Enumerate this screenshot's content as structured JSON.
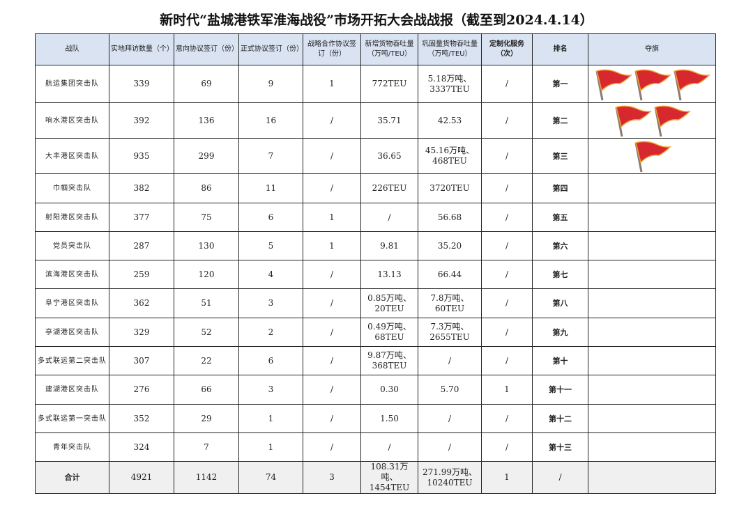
{
  "title": "新时代“盐城港铁军淮海战役”市场开拓大会战战报（截至到2024.4.14）",
  "headers": [
    "战队",
    "实地拜访数量（个）",
    "意向协议签订（份）",
    "正式协议签订（份）",
    "战略合作协议签订（份）",
    "新增货物吞吐量（万吨/TEU）",
    "巩固量货物吞吐量（万吨/TEU）",
    "定制化服务（次）",
    "排名",
    "夺旗"
  ],
  "rows": [
    {
      "team": "航运集团突击队",
      "visits": "339",
      "intent": "69",
      "formal": "9",
      "strategic": "1",
      "new_tp": "772TEU",
      "kept_tp": "5.18万吨、3337TEU",
      "custom": "/",
      "rank": "第一",
      "flags": 3
    },
    {
      "team": "响水港区突击队",
      "visits": "392",
      "intent": "136",
      "formal": "16",
      "strategic": "/",
      "new_tp": "35.71",
      "kept_tp": "42.53",
      "custom": "/",
      "rank": "第二",
      "flags": 2
    },
    {
      "team": "大丰港区突击队",
      "visits": "935",
      "intent": "299",
      "formal": "7",
      "strategic": "/",
      "new_tp": "36.65",
      "kept_tp": "45.16万吨、468TEU",
      "custom": "/",
      "rank": "第三",
      "flags": 1
    },
    {
      "team": "巾帼突击队",
      "visits": "382",
      "intent": "86",
      "formal": "11",
      "strategic": "/",
      "new_tp": "226TEU",
      "kept_tp": "3720TEU",
      "custom": "/",
      "rank": "第四",
      "flags": 0
    },
    {
      "team": "射阳港区突击队",
      "visits": "377",
      "intent": "75",
      "formal": "6",
      "strategic": "1",
      "new_tp": "/",
      "kept_tp": "56.68",
      "custom": "/",
      "rank": "第五",
      "flags": 0
    },
    {
      "team": "党员突击队",
      "visits": "287",
      "intent": "130",
      "formal": "5",
      "strategic": "1",
      "new_tp": "9.81",
      "kept_tp": "35.20",
      "custom": "/",
      "rank": "第六",
      "flags": 0
    },
    {
      "team": "滨海港区突击队",
      "visits": "259",
      "intent": "120",
      "formal": "4",
      "strategic": "/",
      "new_tp": "13.13",
      "kept_tp": "66.44",
      "custom": "/",
      "rank": "第七",
      "flags": 0
    },
    {
      "team": "阜宁港区突击队",
      "visits": "362",
      "intent": "51",
      "formal": "3",
      "strategic": "/",
      "new_tp": "0.85万吨、20TEU",
      "kept_tp": "7.8万吨、60TEU",
      "custom": "/",
      "rank": "第八",
      "flags": 0
    },
    {
      "team": "亭湖港区突击队",
      "visits": "329",
      "intent": "52",
      "formal": "2",
      "strategic": "/",
      "new_tp": "0.49万吨、68TEU",
      "kept_tp": "7.3万吨、2655TEU",
      "custom": "/",
      "rank": "第九",
      "flags": 0
    },
    {
      "team": "多式联运第二突击队",
      "visits": "307",
      "intent": "22",
      "formal": "6",
      "strategic": "/",
      "new_tp": "9.87万吨、368TEU",
      "kept_tp": "/",
      "custom": "/",
      "rank": "第十",
      "flags": 0
    },
    {
      "team": "建湖港区突击队",
      "visits": "276",
      "intent": "66",
      "formal": "3",
      "strategic": "/",
      "new_tp": "0.30",
      "kept_tp": "5.70",
      "custom": "1",
      "rank": "第十一",
      "flags": 0
    },
    {
      "team": "多式联运第一突击队",
      "visits": "352",
      "intent": "29",
      "formal": "1",
      "strategic": "/",
      "new_tp": "1.50",
      "kept_tp": "/",
      "custom": "/",
      "rank": "第十二",
      "flags": 0
    },
    {
      "team": "青年突击队",
      "visits": "324",
      "intent": "7",
      "formal": "1",
      "strategic": "/",
      "new_tp": "/",
      "kept_tp": "/",
      "custom": "/",
      "rank": "第十三",
      "flags": 0
    }
  ],
  "total": {
    "team": "合计",
    "visits": "4921",
    "intent": "1142",
    "formal": "74",
    "strategic": "3",
    "new_tp": "108.31万吨、1454TEU",
    "kept_tp": "271.99万吨、10240TEU",
    "custom": "1",
    "rank": "/"
  },
  "colors": {
    "header_bg": "#d9e3f2",
    "flag": "#d7282f",
    "flag_border": "#f0a030",
    "total_bg": "#f0f0f0"
  }
}
